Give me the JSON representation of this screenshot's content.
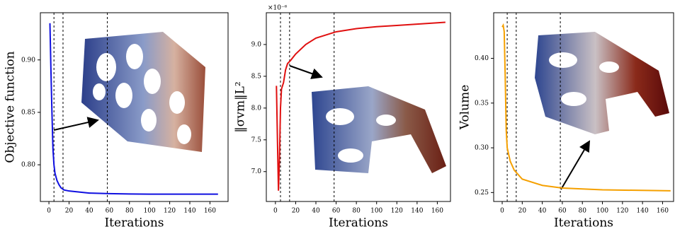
{
  "chart_data": [
    {
      "type": "line",
      "ylabel": "Objective function",
      "xlabel": "Iterations",
      "color": "#1010e0",
      "x": [
        1,
        2,
        3,
        4,
        5,
        6,
        8,
        10,
        12,
        15,
        20,
        30,
        40,
        60,
        80,
        100,
        120,
        140,
        168
      ],
      "values": [
        0.935,
        0.89,
        0.85,
        0.815,
        0.8,
        0.792,
        0.785,
        0.781,
        0.778,
        0.776,
        0.775,
        0.774,
        0.773,
        0.7725,
        0.7722,
        0.772,
        0.772,
        0.772,
        0.772
      ],
      "xlim": [
        -8.5,
        178
      ],
      "ylim": [
        0.765,
        0.945
      ],
      "xticks": [
        0,
        20,
        40,
        60,
        80,
        100,
        120,
        140,
        160
      ],
      "yticks": [
        {
          "value": 0.8,
          "label": "0.80"
        },
        {
          "value": 0.85,
          "label": "0.85"
        },
        {
          "value": 0.9,
          "label": "0.90"
        }
      ],
      "vlines": [
        5,
        14,
        58
      ]
    },
    {
      "type": "line",
      "ylabel": "‖σvm‖L²",
      "xlabel": "Iterations",
      "offset": "×10⁻⁶",
      "color": "#e01010",
      "x": [
        1,
        2,
        3,
        4,
        5,
        6,
        8,
        10,
        12,
        15,
        20,
        30,
        40,
        60,
        80,
        100,
        120,
        140,
        168
      ],
      "values": [
        8.35,
        7.5,
        6.7,
        7.2,
        8.0,
        8.3,
        8.4,
        8.6,
        8.7,
        8.75,
        8.85,
        9.0,
        9.1,
        9.2,
        9.25,
        9.28,
        9.3,
        9.32,
        9.35
      ],
      "xlim": [
        -9,
        173
      ],
      "ylim": [
        6.53,
        9.5
      ],
      "xticks": [
        0,
        20,
        40,
        60,
        80,
        100,
        120,
        140,
        160
      ],
      "yticks": [
        {
          "value": 7,
          "label": "7.0"
        },
        7.5,
        {
          "value": 8,
          "label": "8.0"
        },
        8.5,
        {
          "value": 9,
          "label": "9.0"
        }
      ],
      "vlines": [
        5,
        14,
        58
      ]
    },
    {
      "type": "line",
      "ylabel": "Volume",
      "xlabel": "Iterations",
      "color": "#f5a000",
      "x": [
        0,
        1,
        2,
        3,
        4,
        5,
        8,
        12,
        20,
        40,
        60,
        100,
        168
      ],
      "values": [
        0.435,
        0.437,
        0.43,
        0.38,
        0.32,
        0.3,
        0.285,
        0.275,
        0.265,
        0.258,
        0.255,
        0.253,
        0.252
      ],
      "xlim": [
        -8.5,
        171
      ],
      "ylim": [
        0.24,
        0.451
      ],
      "xticks": [
        0,
        20,
        40,
        60,
        80,
        100,
        120,
        140,
        160
      ],
      "yticks": [
        0.25,
        {
          "value": 0.3,
          "label": "0.30"
        },
        0.35,
        {
          "value": 0.4,
          "label": "0.40"
        }
      ],
      "vlines": [
        5,
        14,
        58
      ]
    }
  ]
}
